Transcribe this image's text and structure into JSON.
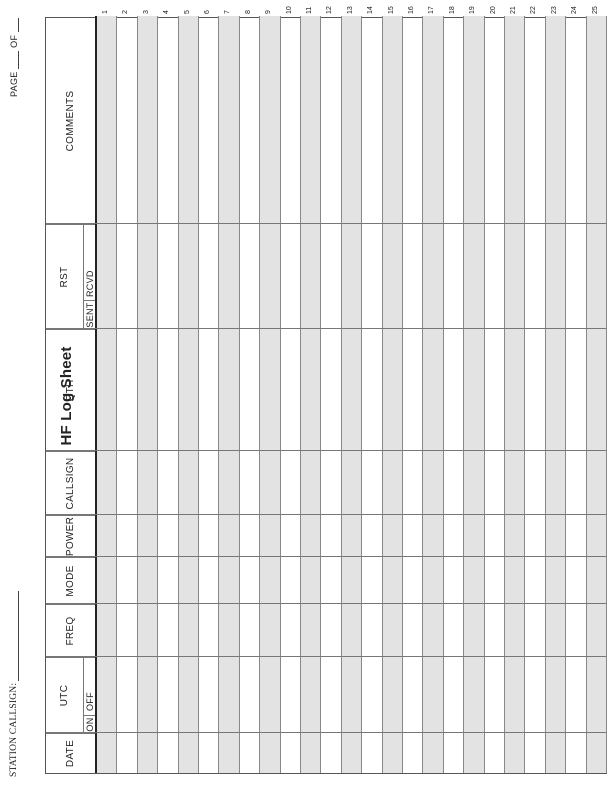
{
  "title": "HF Log Sheet",
  "station_label": "STATION CALLSIGN:",
  "page_label": "PAGE",
  "of_label": "OF",
  "columns": [
    {
      "label": "DATE"
    },
    {
      "label": "UTC",
      "sub": [
        "ON",
        "OFF"
      ]
    },
    {
      "label": "FREQ"
    },
    {
      "label": "MODE"
    },
    {
      "label": "POWER"
    },
    {
      "label": "CALLSIGN"
    },
    {
      "label": "QTH"
    },
    {
      "label": "RST",
      "sub": [
        "SENT",
        "RCVD"
      ]
    },
    {
      "label": "COMMENTS"
    }
  ],
  "row_numbers": [
    "1",
    "2",
    "3",
    "4",
    "5",
    "6",
    "7",
    "8",
    "9",
    "10",
    "11",
    "12",
    "13",
    "14",
    "15",
    "16",
    "17",
    "18",
    "19",
    "20",
    "21",
    "22",
    "23",
    "24",
    "25"
  ],
  "colors": {
    "shade": "#e3e3e3",
    "rule": "#222222"
  }
}
